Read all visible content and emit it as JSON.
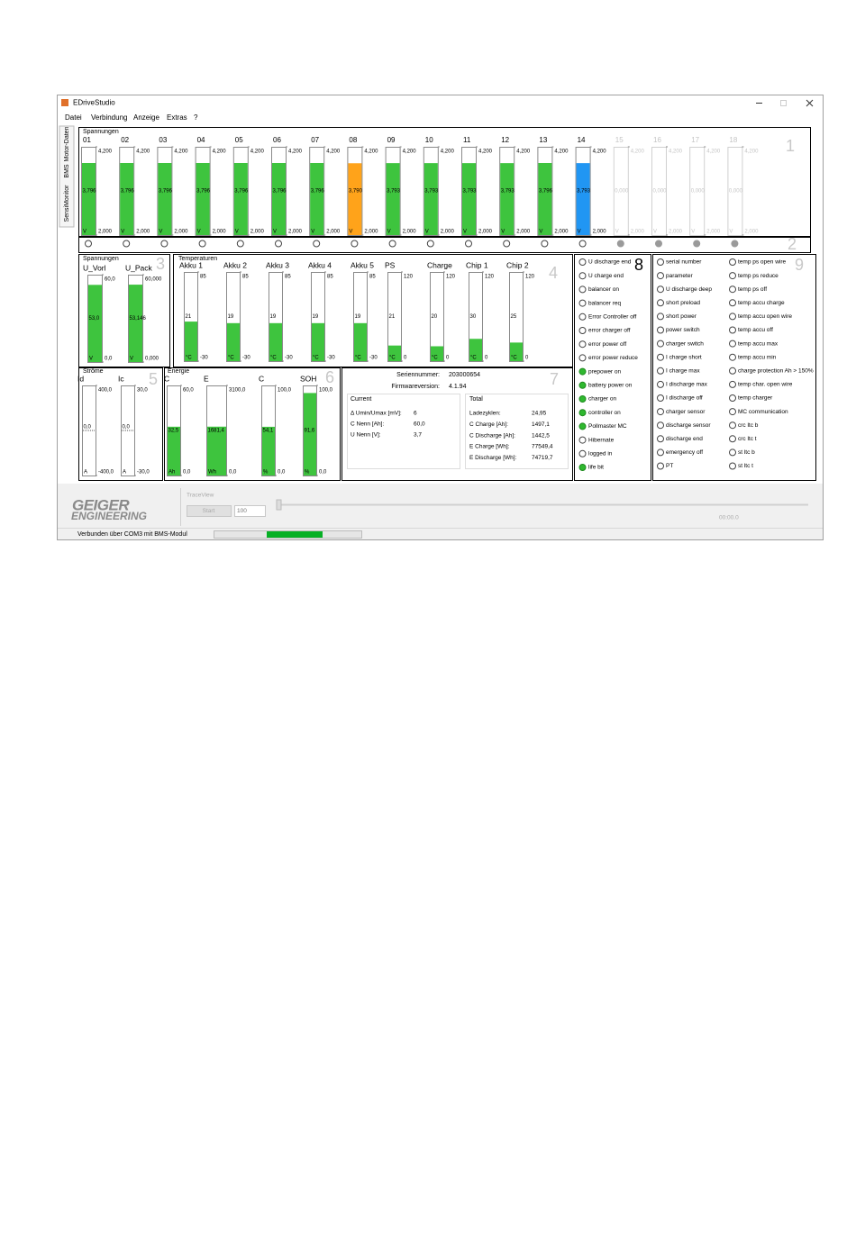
{
  "window": {
    "title": "EDriveStudio",
    "menu": [
      "Datei",
      "Verbindung",
      "Anzeige",
      "Extras",
      "?"
    ],
    "tabs": [
      "Motor-Daten",
      "BMS",
      "SensiMonitor"
    ]
  },
  "cells": {
    "title": "Spannungen",
    "badge": "1",
    "badge_indicators": "2",
    "gauges": [
      {
        "name": "01",
        "value": 3.796,
        "label": "3,796",
        "min": {
          "value": 2,
          "label": "2,000"
        },
        "max": {
          "value": 4.2,
          "label": "4,200"
        },
        "unit": "V",
        "color": "#3ec43e",
        "enabled": true
      },
      {
        "name": "02",
        "value": 3.796,
        "label": "3,796",
        "min": {
          "value": 2,
          "label": "2,000"
        },
        "max": {
          "value": 4.2,
          "label": "4,200"
        },
        "unit": "V",
        "color": "#3ec43e",
        "enabled": true
      },
      {
        "name": "03",
        "value": 3.796,
        "label": "3,796",
        "min": {
          "value": 2,
          "label": "2,000"
        },
        "max": {
          "value": 4.2,
          "label": "4,200"
        },
        "unit": "V",
        "color": "#3ec43e",
        "enabled": true
      },
      {
        "name": "04",
        "value": 3.796,
        "label": "3,796",
        "min": {
          "value": 2,
          "label": "2,000"
        },
        "max": {
          "value": 4.2,
          "label": "4,200"
        },
        "unit": "V",
        "color": "#3ec43e",
        "enabled": true
      },
      {
        "name": "05",
        "value": 3.796,
        "label": "3,796",
        "min": {
          "value": 2,
          "label": "2,000"
        },
        "max": {
          "value": 4.2,
          "label": "4,200"
        },
        "unit": "V",
        "color": "#3ec43e",
        "enabled": true
      },
      {
        "name": "06",
        "value": 3.796,
        "label": "3,796",
        "min": {
          "value": 2,
          "label": "2,000"
        },
        "max": {
          "value": 4.2,
          "label": "4,200"
        },
        "unit": "V",
        "color": "#3ec43e",
        "enabled": true
      },
      {
        "name": "07",
        "value": 3.796,
        "label": "3,796",
        "min": {
          "value": 2,
          "label": "2,000"
        },
        "max": {
          "value": 4.2,
          "label": "4,200"
        },
        "unit": "V",
        "color": "#3ec43e",
        "enabled": true
      },
      {
        "name": "08",
        "value": 3.79,
        "label": "3,790",
        "min": {
          "value": 2,
          "label": "2,000"
        },
        "max": {
          "value": 4.2,
          "label": "4,200"
        },
        "unit": "V",
        "color": "#ffa31a",
        "enabled": true
      },
      {
        "name": "09",
        "value": 3.793,
        "label": "3,793",
        "min": {
          "value": 2,
          "label": "2,000"
        },
        "max": {
          "value": 4.2,
          "label": "4,200"
        },
        "unit": "V",
        "color": "#3ec43e",
        "enabled": true
      },
      {
        "name": "10",
        "value": 3.793,
        "label": "3,793",
        "min": {
          "value": 2,
          "label": "2,000"
        },
        "max": {
          "value": 4.2,
          "label": "4,200"
        },
        "unit": "V",
        "color": "#3ec43e",
        "enabled": true
      },
      {
        "name": "11",
        "value": 3.793,
        "label": "3,793",
        "min": {
          "value": 2,
          "label": "2,000"
        },
        "max": {
          "value": 4.2,
          "label": "4,200"
        },
        "unit": "V",
        "color": "#3ec43e",
        "enabled": true
      },
      {
        "name": "12",
        "value": 3.793,
        "label": "3,793",
        "min": {
          "value": 2,
          "label": "2,000"
        },
        "max": {
          "value": 4.2,
          "label": "4,200"
        },
        "unit": "V",
        "color": "#3ec43e",
        "enabled": true
      },
      {
        "name": "13",
        "value": 3.796,
        "label": "3,796",
        "min": {
          "value": 2,
          "label": "2,000"
        },
        "max": {
          "value": 4.2,
          "label": "4,200"
        },
        "unit": "V",
        "color": "#3ec43e",
        "enabled": true
      },
      {
        "name": "14",
        "value": 3.793,
        "label": "3,793",
        "min": {
          "value": 2,
          "label": "2,000"
        },
        "max": {
          "value": 4.2,
          "label": "4,200"
        },
        "unit": "V",
        "color": "#2196f3",
        "enabled": true
      },
      {
        "name": "15",
        "value": 0,
        "label": "0,000",
        "min": {
          "value": 2,
          "label": "2,000"
        },
        "max": {
          "value": 4.2,
          "label": "4,200"
        },
        "unit": "V",
        "color": "#3ec43e",
        "enabled": false
      },
      {
        "name": "16",
        "value": 0,
        "label": "0,000",
        "min": {
          "value": 2,
          "label": "2,000"
        },
        "max": {
          "value": 4.2,
          "label": "4,200"
        },
        "unit": "V",
        "color": "#3ec43e",
        "enabled": false
      },
      {
        "name": "17",
        "value": 0,
        "label": "0,000",
        "min": {
          "value": 2,
          "label": "2,000"
        },
        "max": {
          "value": 4.2,
          "label": "4,200"
        },
        "unit": "V",
        "color": "#3ec43e",
        "enabled": false
      },
      {
        "name": "18",
        "value": 0,
        "label": "0,000",
        "min": {
          "value": 2,
          "label": "2,000"
        },
        "max": {
          "value": 4.2,
          "label": "4,200"
        },
        "unit": "V",
        "color": "#3ec43e",
        "enabled": false
      }
    ]
  },
  "voltages": {
    "title": "Spannungen",
    "badge": "3",
    "gauges": [
      {
        "name": "U_Vorl",
        "value": 53,
        "label": "53,0",
        "min": {
          "value": 0,
          "label": "0,0"
        },
        "max": {
          "value": 60,
          "label": "60,0"
        },
        "unit": "V",
        "color": "#3ec43e"
      },
      {
        "name": "U_Pack",
        "value": 53.146,
        "label": "53,146",
        "min": {
          "value": 0,
          "label": "0,000"
        },
        "max": {
          "value": 60,
          "label": "60,000"
        },
        "unit": "V",
        "color": "#3ec43e"
      }
    ]
  },
  "temperatures": {
    "title": "Temperaturen",
    "badge": "4",
    "gauges": [
      {
        "name": "Akku 1",
        "value": 21,
        "min": -30,
        "max": 85,
        "unit": "°C",
        "color": "#3ec43e"
      },
      {
        "name": "Akku 2",
        "value": 19,
        "min": -30,
        "max": 85,
        "unit": "°C",
        "color": "#3ec43e"
      },
      {
        "name": "Akku 3",
        "value": 19,
        "min": -30,
        "max": 85,
        "unit": "°C",
        "color": "#3ec43e"
      },
      {
        "name": "Akku 4",
        "value": 19,
        "min": -30,
        "max": 85,
        "unit": "°C",
        "color": "#3ec43e"
      },
      {
        "name": "Akku 5",
        "value": 19,
        "min": -30,
        "max": 85,
        "unit": "°C",
        "color": "#3ec43e"
      },
      {
        "name": "PS",
        "value": 21,
        "min": 0,
        "max": 120,
        "unit": "°C",
        "color": "#3ec43e"
      },
      {
        "name": "Charge",
        "value": 20,
        "min": 0,
        "max": 120,
        "unit": "°C",
        "color": "#3ec43e"
      },
      {
        "name": "Chip 1",
        "value": 30,
        "min": 0,
        "max": 120,
        "unit": "°C",
        "color": "#3ec43e"
      },
      {
        "name": "Chip 2",
        "value": 25,
        "min": 0,
        "max": 120,
        "unit": "°C",
        "color": "#3ec43e"
      }
    ]
  },
  "currents": {
    "title": "Ströme",
    "badge": "5",
    "fill_from_zero": true,
    "gauges": [
      {
        "name": "Id",
        "value": 0,
        "label": "0,0",
        "min": {
          "value": -400,
          "label": "-400,0"
        },
        "max": {
          "value": 400,
          "label": "400,0"
        },
        "unit": "A",
        "color": "#3ec43e"
      },
      {
        "name": "Ic",
        "value": 0,
        "label": "0,0",
        "min": {
          "value": -30,
          "label": "-30,0"
        },
        "max": {
          "value": 30,
          "label": "30,0"
        },
        "unit": "A",
        "color": "#3ec43e"
      }
    ]
  },
  "energy": {
    "title": "Energie",
    "badge": "6",
    "gauges": [
      {
        "name": "C",
        "value": 32.5,
        "label": "32,5",
        "min": {
          "value": 0,
          "label": "0,0"
        },
        "max": {
          "value": 60,
          "label": "60,0"
        },
        "unit": "Ah",
        "color": "#3ec43e"
      },
      {
        "name": "E",
        "value": 1681.4,
        "label": "1681,4",
        "min": {
          "value": 0,
          "label": "0,0"
        },
        "max": {
          "value": 3100,
          "label": "3100,0"
        },
        "unit": "Wh",
        "color": "#3ec43e"
      },
      {
        "name": "C",
        "value": 54.1,
        "label": "54,1",
        "min": {
          "value": 0,
          "label": "0,0"
        },
        "max": {
          "value": 100,
          "label": "100,0"
        },
        "unit": "%",
        "color": "#3ec43e"
      },
      {
        "name": "SOH",
        "value": 91.6,
        "label": "91,6",
        "min": {
          "value": 0,
          "label": "0,0"
        },
        "max": {
          "value": 100,
          "label": "100,0"
        },
        "unit": "%",
        "color": "#3ec43e"
      }
    ]
  },
  "info": {
    "badge": "7",
    "serial_label": "Seriennummer:",
    "serial": "203000654",
    "firmware_label": "Firmwareversion:",
    "firmware": "4.1.94",
    "current": {
      "title": "Current",
      "rows": [
        [
          "Δ Umin/Umax [mV]:",
          "6"
        ],
        [
          "C Nenn [Ah]:",
          "60,0"
        ],
        [
          "U Nenn [V]:",
          "3,7"
        ]
      ]
    },
    "total": {
      "title": "Total",
      "rows": [
        [
          "Ladezyklen:",
          "24,95"
        ],
        [
          "C Charge [Ah]:",
          "1497,1"
        ],
        [
          "C Discharge [Ah]:",
          "1442,5"
        ],
        [
          "E Charge [Wh]:",
          "77549,4"
        ],
        [
          "E Discharge [Wh]:",
          "74719,7"
        ]
      ]
    }
  },
  "flags": {
    "badge": "8",
    "items": [
      {
        "text": "U discharge end",
        "on": false
      },
      {
        "text": "U charge end",
        "on": false
      },
      {
        "text": "balancer on",
        "on": false
      },
      {
        "text": "balancer req",
        "on": false
      },
      {
        "text": "Error Controller off",
        "on": false
      },
      {
        "text": "error charger off",
        "on": false
      },
      {
        "text": "error power off",
        "on": false
      },
      {
        "text": "error power reduce",
        "on": false
      },
      {
        "text": "prepower on",
        "on": true
      },
      {
        "text": "battery power on",
        "on": true
      },
      {
        "text": "charger on",
        "on": true
      },
      {
        "text": "controller on",
        "on": true
      },
      {
        "text": "Pollmaster MC",
        "on": true
      },
      {
        "text": "Hibernate",
        "on": false
      },
      {
        "text": "logged in",
        "on": false
      },
      {
        "text": "life bit",
        "on": true
      }
    ]
  },
  "errors": {
    "badge": "9",
    "columns": [
      [
        "serial number",
        "parameter",
        "U discharge deep",
        "short preload",
        "short power",
        "power switch",
        "charger switch",
        "I charge short",
        "I charge max",
        "I discharge max",
        "I discharge off",
        "charger sensor",
        "discharge sensor",
        "discharge end",
        "emergency off",
        "PT"
      ],
      [
        "temp ps open wire",
        "temp ps reduce",
        "temp ps off",
        "temp accu charge",
        "temp accu open wire",
        "temp accu off",
        "temp accu max",
        "temp accu min",
        "charge protection Ah > 150%",
        "temp char. open wire",
        "temp charger",
        "MC communication",
        "crc ltc b",
        "crc ltc t",
        "st ltc b",
        "st ltc t"
      ]
    ]
  },
  "footer": {
    "logo_top": "GEIGER",
    "logo_bottom": "ENGINEERING",
    "trace_title": "TraceView",
    "start": "Start",
    "spin": "100",
    "time": "00:00.0",
    "status": "Verbunden über COM3 mit BMS-Modul"
  }
}
